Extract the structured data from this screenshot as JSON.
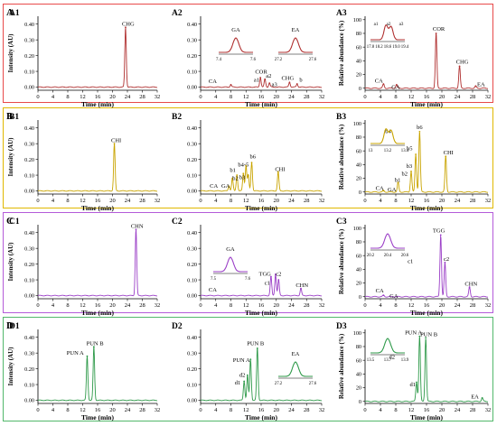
{
  "figure": {
    "rows": [
      {
        "letter": "A",
        "color": "#e84a4a",
        "line": "#b03030"
      },
      {
        "letter": "B",
        "color": "#e0b800",
        "line": "#c9a400"
      },
      {
        "letter": "C",
        "color": "#b45bd9",
        "line": "#9b3fc7"
      },
      {
        "letter": "D",
        "color": "#52b86b",
        "line": "#2f9a4a"
      }
    ],
    "axes": {
      "intensity_label": "Intensity (AU)",
      "relative_label": "Relative abundance (%)",
      "time_label": "Time (min)"
    }
  },
  "chart_data": [
    {
      "id": "A1",
      "row": "A",
      "col": 0,
      "type": "line",
      "xlabel": "Time (min)",
      "ylabel": "Intensity (AU)",
      "xlim": [
        0,
        32
      ],
      "ylim": [
        -0.02,
        0.45
      ],
      "xticks": [
        0,
        4,
        8,
        12,
        16,
        20,
        24,
        28,
        32
      ],
      "yticks": [
        0.0,
        0.1,
        0.2,
        0.3,
        0.4
      ],
      "peaks": [
        {
          "x": 23.5,
          "y": 0.38
        }
      ],
      "labels": [
        {
          "text": "CHG",
          "x": 24.2,
          "y": 0.39
        }
      ]
    },
    {
      "id": "A2",
      "row": "A",
      "col": 1,
      "type": "line",
      "xlabel": "Time (min)",
      "ylabel": "",
      "xlim": [
        0,
        32
      ],
      "ylim": [
        -0.02,
        0.45
      ],
      "xticks": [
        0,
        4,
        8,
        12,
        16,
        20,
        24,
        28,
        32
      ],
      "yticks": [
        0.0,
        0.1,
        0.2,
        0.3,
        0.4
      ],
      "peaks": [
        {
          "x": 8.0,
          "y": 0.015
        },
        {
          "x": 15.8,
          "y": 0.06
        },
        {
          "x": 17.0,
          "y": 0.05
        },
        {
          "x": 18.2,
          "y": 0.025
        },
        {
          "x": 23.5,
          "y": 0.03
        },
        {
          "x": 25.5,
          "y": 0.02
        }
      ],
      "labels": [
        {
          "text": "CA",
          "x": 3.2,
          "y": 0.025
        },
        {
          "text": "a1",
          "x": 14.8,
          "y": 0.035
        },
        {
          "text": "COR",
          "x": 16.0,
          "y": 0.085
        },
        {
          "text": "a2",
          "x": 18.0,
          "y": 0.06
        },
        {
          "text": "a3",
          "x": 19.5,
          "y": 0.005
        },
        {
          "text": "CHG",
          "x": 23.0,
          "y": 0.045
        },
        {
          "text": "b",
          "x": 26.5,
          "y": 0.035
        }
      ],
      "insets": [
        {
          "title": "GA",
          "ticks": [
            "7.4",
            "7.6"
          ],
          "profile": "single"
        },
        {
          "title": "EA",
          "ticks": [
            "27.2",
            "27.6"
          ],
          "profile": "single"
        }
      ]
    },
    {
      "id": "A3",
      "row": "A",
      "col": 2,
      "type": "line",
      "xlabel": "Time (min)",
      "ylabel": "Relative abundance (%)",
      "xlim": [
        0,
        32
      ],
      "ylim": [
        -3,
        105
      ],
      "xticks": [
        0,
        4,
        8,
        12,
        16,
        20,
        24,
        28,
        32
      ],
      "yticks": [
        0,
        20,
        40,
        60,
        80,
        100
      ],
      "peaks": [
        {
          "x": 18.5,
          "y": 80
        },
        {
          "x": 24.6,
          "y": 32
        },
        {
          "x": 4.8,
          "y": 6
        },
        {
          "x": 8.2,
          "y": 5
        },
        {
          "x": 28.8,
          "y": 3
        }
      ],
      "labels": [
        {
          "text": "CA",
          "x": 3.6,
          "y": 8
        },
        {
          "text": "GA",
          "x": 8.0,
          "y": -1
        },
        {
          "text": "COR",
          "x": 19.2,
          "y": 84
        },
        {
          "text": "CHG",
          "x": 25.3,
          "y": 36
        },
        {
          "text": "EA",
          "x": 30.2,
          "y": 3
        }
      ],
      "insets": [
        {
          "title": "",
          "ticks": [
            "17.8",
            "18.2",
            "18.6",
            "19.0",
            "19.4"
          ],
          "profile": "double",
          "peak_labels": [
            "a1",
            "a2",
            "a3"
          ]
        }
      ]
    },
    {
      "id": "B1",
      "row": "B",
      "col": 0,
      "type": "line",
      "xlabel": "Time (min)",
      "ylabel": "Intensity (AU)",
      "xlim": [
        0,
        32
      ],
      "ylim": [
        -0.02,
        0.45
      ],
      "xticks": [
        0,
        4,
        8,
        12,
        16,
        20,
        24,
        28,
        32
      ],
      "yticks": [
        0.0,
        0.1,
        0.2,
        0.3,
        0.4
      ],
      "peaks": [
        {
          "x": 20.5,
          "y": 0.3
        }
      ],
      "labels": [
        {
          "text": "CHI",
          "x": 21.0,
          "y": 0.31
        }
      ]
    },
    {
      "id": "B2",
      "row": "B",
      "col": 1,
      "type": "line",
      "xlabel": "Time (min)",
      "ylabel": "",
      "xlim": [
        0,
        32
      ],
      "ylim": [
        -0.02,
        0.45
      ],
      "xticks": [
        0,
        4,
        8,
        12,
        16,
        20,
        24,
        28,
        32
      ],
      "yticks": [
        0.0,
        0.1,
        0.2,
        0.3,
        0.4
      ],
      "peaks": [
        {
          "x": 7.5,
          "y": 0.03
        },
        {
          "x": 8.4,
          "y": 0.08
        },
        {
          "x": 9.6,
          "y": 0.1
        },
        {
          "x": 11.3,
          "y": 0.11
        },
        {
          "x": 12.0,
          "y": 0.16
        },
        {
          "x": 12.6,
          "y": 0.1
        },
        {
          "x": 13.5,
          "y": 0.18
        },
        {
          "x": 20.5,
          "y": 0.12
        }
      ],
      "labels": [
        {
          "text": "CA",
          "x": 3.5,
          "y": 0.02
        },
        {
          "text": "GA",
          "x": 6.6,
          "y": 0.02
        },
        {
          "text": "b1",
          "x": 8.5,
          "y": 0.12
        },
        {
          "text": "b2",
          "x": 9.2,
          "y": 0.07
        },
        {
          "text": "b3",
          "x": 11.0,
          "y": 0.075
        },
        {
          "text": "b4-5",
          "x": 11.3,
          "y": 0.155
        },
        {
          "text": "b6",
          "x": 13.8,
          "y": 0.205
        },
        {
          "text": "CHI",
          "x": 21.0,
          "y": 0.125
        }
      ]
    },
    {
      "id": "B3",
      "row": "B",
      "col": 2,
      "type": "line",
      "xlabel": "Time (min)",
      "ylabel": "Relative abundance (%)",
      "xlim": [
        0,
        32
      ],
      "ylim": [
        -3,
        105
      ],
      "xticks": [
        0,
        4,
        8,
        12,
        16,
        20,
        24,
        28,
        32
      ],
      "yticks": [
        0,
        20,
        40,
        60,
        80,
        100
      ],
      "peaks": [
        {
          "x": 12.0,
          "y": 30
        },
        {
          "x": 13.2,
          "y": 55
        },
        {
          "x": 14.2,
          "y": 88
        },
        {
          "x": 8.6,
          "y": 14
        },
        {
          "x": 21.0,
          "y": 52
        },
        {
          "x": 4.8,
          "y": 2
        }
      ],
      "labels": [
        {
          "text": "CA",
          "x": 3.8,
          "y": 3
        },
        {
          "text": "GA",
          "x": 7.0,
          "y": 1
        },
        {
          "text": "b1",
          "x": 8.5,
          "y": 15
        },
        {
          "text": "b2",
          "x": 10.3,
          "y": 24
        },
        {
          "text": "b3",
          "x": 11.5,
          "y": 35
        },
        {
          "text": "b4",
          "x": 6.0,
          "y": 86
        },
        {
          "text": "b5",
          "x": 11.6,
          "y": 61
        },
        {
          "text": "b6",
          "x": 14.2,
          "y": 92
        },
        {
          "text": "CHI",
          "x": 21.7,
          "y": 55
        }
      ],
      "insets": [
        {
          "title": "",
          "ticks": [
            "13",
            "13.2",
            "13.4"
          ],
          "profile": "double"
        }
      ]
    },
    {
      "id": "C1",
      "row": "C",
      "col": 0,
      "type": "line",
      "xlabel": "Time (min)",
      "ylabel": "Intensity (AU)",
      "xlim": [
        0,
        32
      ],
      "ylim": [
        -0.02,
        0.45
      ],
      "xticks": [
        0,
        4,
        8,
        12,
        16,
        20,
        24,
        28,
        32
      ],
      "yticks": [
        0.0,
        0.1,
        0.2,
        0.3,
        0.4
      ],
      "peaks": [
        {
          "x": 26.3,
          "y": 0.42
        }
      ],
      "labels": [
        {
          "text": "CHN",
          "x": 26.6,
          "y": 0.43
        }
      ]
    },
    {
      "id": "C2",
      "row": "C",
      "col": 1,
      "type": "line",
      "xlabel": "Time (min)",
      "ylabel": "",
      "xlim": [
        0,
        32
      ],
      "ylim": [
        -0.02,
        0.45
      ],
      "xticks": [
        0,
        4,
        8,
        12,
        16,
        20,
        24,
        28,
        32
      ],
      "yticks": [
        0.0,
        0.1,
        0.2,
        0.3,
        0.4
      ],
      "peaks": [
        {
          "x": 18.6,
          "y": 0.12
        },
        {
          "x": 19.8,
          "y": 0.135
        },
        {
          "x": 20.6,
          "y": 0.1
        },
        {
          "x": 26.5,
          "y": 0.045
        }
      ],
      "labels": [
        {
          "text": "CA",
          "x": 3.2,
          "y": 0.025
        },
        {
          "text": "c1",
          "x": 17.6,
          "y": 0.07
        },
        {
          "text": "TGG",
          "x": 17.0,
          "y": 0.125
        },
        {
          "text": "c2",
          "x": 20.6,
          "y": 0.125
        },
        {
          "text": "CHN",
          "x": 26.8,
          "y": 0.055
        }
      ],
      "insets": [
        {
          "title": "GA",
          "ticks": [
            "7.5",
            "7.6"
          ],
          "profile": "single"
        }
      ]
    },
    {
      "id": "C3",
      "row": "C",
      "col": 2,
      "type": "line",
      "xlabel": "Time (min)",
      "ylabel": "Relative abundance (%)",
      "xlim": [
        0,
        32
      ],
      "ylim": [
        -3,
        105
      ],
      "xticks": [
        0,
        4,
        8,
        12,
        16,
        20,
        24,
        28,
        32
      ],
      "yticks": [
        0,
        20,
        40,
        60,
        80,
        100
      ],
      "peaks": [
        {
          "x": 19.7,
          "y": 90
        },
        {
          "x": 20.8,
          "y": 50
        },
        {
          "x": 27.2,
          "y": 14
        },
        {
          "x": 4.8,
          "y": 2
        }
      ],
      "labels": [
        {
          "text": "CA",
          "x": 3.8,
          "y": 6
        },
        {
          "text": "GA",
          "x": 7.5,
          "y": -2
        },
        {
          "text": "c1",
          "x": 11.8,
          "y": 49
        },
        {
          "text": "TGG",
          "x": 19.2,
          "y": 94
        },
        {
          "text": "c2",
          "x": 21.2,
          "y": 52
        },
        {
          "text": "CHN",
          "x": 27.6,
          "y": 16
        }
      ],
      "insets": [
        {
          "title": "",
          "ticks": [
            "20.2",
            "20.4",
            "20.6"
          ],
          "profile": "single"
        }
      ]
    },
    {
      "id": "D1",
      "row": "D",
      "col": 0,
      "type": "line",
      "xlabel": "Time (min)",
      "ylabel": "Intensity (AU)",
      "xlim": [
        0,
        32
      ],
      "ylim": [
        -0.02,
        0.45
      ],
      "xticks": [
        0,
        4,
        8,
        12,
        16,
        20,
        24,
        28,
        32
      ],
      "yticks": [
        0.0,
        0.1,
        0.2,
        0.3,
        0.4
      ],
      "peaks": [
        {
          "x": 13.2,
          "y": 0.28
        },
        {
          "x": 15.0,
          "y": 0.34
        }
      ],
      "labels": [
        {
          "text": "PUN A",
          "x": 10.0,
          "y": 0.29
        },
        {
          "text": "PUN B",
          "x": 15.3,
          "y": 0.35
        }
      ]
    },
    {
      "id": "D2",
      "row": "D",
      "col": 1,
      "type": "line",
      "xlabel": "Time (min)",
      "ylabel": "",
      "xlim": [
        0,
        32
      ],
      "ylim": [
        -0.02,
        0.45
      ],
      "xticks": [
        0,
        4,
        8,
        12,
        16,
        20,
        24,
        28,
        32
      ],
      "yticks": [
        0.0,
        0.1,
        0.2,
        0.3,
        0.4
      ],
      "peaks": [
        {
          "x": 11.5,
          "y": 0.12
        },
        {
          "x": 12.4,
          "y": 0.16
        },
        {
          "x": 13.2,
          "y": 0.26
        },
        {
          "x": 15.0,
          "y": 0.33
        }
      ],
      "labels": [
        {
          "text": "d1",
          "x": 9.8,
          "y": 0.1
        },
        {
          "text": "d2",
          "x": 11.0,
          "y": 0.15
        },
        {
          "text": "PUN A",
          "x": 10.8,
          "y": 0.245
        },
        {
          "text": "PUN B",
          "x": 14.5,
          "y": 0.35
        }
      ],
      "insets": [
        {
          "title": "EA",
          "ticks": [
            "27.2",
            "27.6"
          ],
          "profile": "single"
        }
      ]
    },
    {
      "id": "D3",
      "row": "D",
      "col": 2,
      "type": "line",
      "xlabel": "Time (min)",
      "ylabel": "Relative abundance (%)",
      "xlim": [
        0,
        32
      ],
      "ylim": [
        -3,
        105
      ],
      "xticks": [
        0,
        4,
        8,
        12,
        16,
        20,
        24,
        28,
        32
      ],
      "yticks": [
        0,
        20,
        40,
        60,
        80,
        100
      ],
      "peaks": [
        {
          "x": 13.4,
          "y": 28
        },
        {
          "x": 14.2,
          "y": 95
        },
        {
          "x": 15.8,
          "y": 93
        },
        {
          "x": 30.5,
          "y": 5
        }
      ],
      "labels": [
        {
          "text": "d1",
          "x": 12.4,
          "y": 22
        },
        {
          "text": "d2",
          "x": 7.0,
          "y": 62
        },
        {
          "text": "PUN A",
          "x": 12.6,
          "y": 98
        },
        {
          "text": "PUN B",
          "x": 16.6,
          "y": 95
        },
        {
          "text": "EA",
          "x": 28.6,
          "y": 4
        }
      ],
      "insets": [
        {
          "title": "",
          "ticks": [
            "13.5",
            "13.7",
            "13.9"
          ],
          "profile": "single"
        }
      ]
    }
  ]
}
